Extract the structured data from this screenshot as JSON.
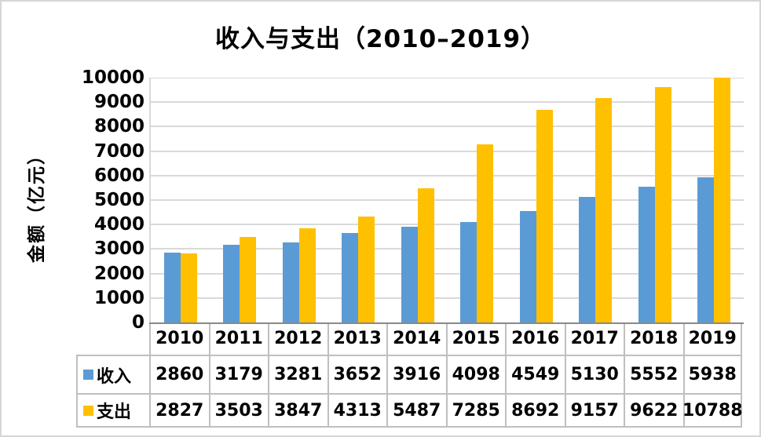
{
  "chart_data": {
    "type": "bar",
    "title": "收入与支出（2010–2019）",
    "ylabel": "金额（亿元）",
    "xlabel": "",
    "categories": [
      "2010",
      "2011",
      "2012",
      "2013",
      "2014",
      "2015",
      "2016",
      "2017",
      "2018",
      "2019"
    ],
    "series": [
      {
        "key": "income",
        "name": "收入",
        "color": "#5B9BD5",
        "values": [
          2860,
          3179,
          3281,
          3652,
          3916,
          4098,
          4549,
          5130,
          5552,
          5938
        ]
      },
      {
        "key": "expense",
        "name": "支出",
        "color": "#FFC000",
        "values": [
          2827,
          3503,
          3847,
          4313,
          5487,
          7285,
          8692,
          9157,
          9622,
          10788
        ]
      }
    ],
    "ylim": [
      0,
      10000
    ],
    "ytick_step": 1000,
    "grid": true,
    "legend_position": "data-table-row-headers",
    "palette": {
      "gridline": "#D9D9D9",
      "axis_line": "#898989",
      "table_border": "#BFBFBF",
      "frame_border": "#D6D6D6",
      "text": "#000000"
    }
  }
}
